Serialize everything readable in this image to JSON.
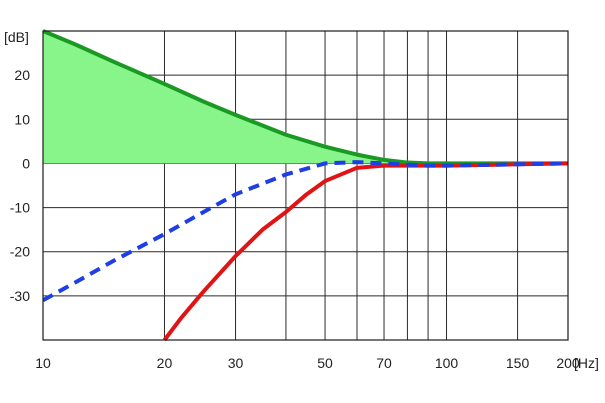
{
  "chart_data": {
    "type": "line",
    "title": "",
    "xlabel": "[Hz]",
    "ylabel": "[dB]",
    "xscale": "log",
    "xlim": [
      10,
      200
    ],
    "ylim": [
      -40,
      30
    ],
    "x_tick_labels": [
      {
        "value": 10,
        "label": "10"
      },
      {
        "value": 20,
        "label": "20"
      },
      {
        "value": 30,
        "label": "30"
      },
      {
        "value": 50,
        "label": "50"
      },
      {
        "value": 70,
        "label": "70"
      },
      {
        "value": 100,
        "label": "100"
      },
      {
        "value": 150,
        "label": "150"
      },
      {
        "value": 200,
        "label": "200"
      }
    ],
    "x_gridlines": [
      20,
      30,
      40,
      50,
      60,
      70,
      80,
      90,
      100,
      150,
      200
    ],
    "y_ticks": [
      {
        "value": 30,
        "label": ""
      },
      {
        "value": 20,
        "label": "20"
      },
      {
        "value": 10,
        "label": "10"
      },
      {
        "value": 0,
        "label": "0"
      },
      {
        "value": -10,
        "label": "-10"
      },
      {
        "value": -20,
        "label": "-20"
      },
      {
        "value": -30,
        "label": "-30"
      }
    ],
    "grid": true,
    "legend": "none",
    "series": [
      {
        "color": "#1a9a22",
        "style": "solid",
        "fill_between_to": 0,
        "fill_color": "#88f58a",
        "points": [
          [
            10,
            30
          ],
          [
            12,
            27
          ],
          [
            15,
            23
          ],
          [
            20,
            18
          ],
          [
            25,
            14
          ],
          [
            30,
            11
          ],
          [
            40,
            6.5
          ],
          [
            50,
            3.8
          ],
          [
            60,
            2
          ],
          [
            70,
            0.8
          ],
          [
            80,
            0.2
          ],
          [
            90,
            0
          ],
          [
            100,
            0
          ],
          [
            150,
            0
          ],
          [
            200,
            0
          ]
        ]
      },
      {
        "color": "#1e3ee6",
        "style": "dashed",
        "points": [
          [
            10,
            -31
          ],
          [
            12,
            -27
          ],
          [
            15,
            -22
          ],
          [
            20,
            -16
          ],
          [
            25,
            -11
          ],
          [
            30,
            -7
          ],
          [
            40,
            -2.5
          ],
          [
            50,
            0
          ],
          [
            60,
            0.3
          ],
          [
            70,
            0
          ],
          [
            80,
            -0.3
          ],
          [
            90,
            -0.5
          ],
          [
            100,
            -0.5
          ],
          [
            150,
            -0.2
          ],
          [
            200,
            0
          ]
        ]
      },
      {
        "color": "#e01414",
        "style": "solid",
        "points": [
          [
            20,
            -40
          ],
          [
            22,
            -35
          ],
          [
            25,
            -29
          ],
          [
            30,
            -21
          ],
          [
            35,
            -15
          ],
          [
            40,
            -11
          ],
          [
            45,
            -7
          ],
          [
            50,
            -4
          ],
          [
            60,
            -1
          ],
          [
            70,
            -0.5
          ],
          [
            80,
            -0.5
          ],
          [
            100,
            -0.5
          ],
          [
            150,
            -0.2
          ],
          [
            200,
            0
          ]
        ]
      }
    ]
  }
}
